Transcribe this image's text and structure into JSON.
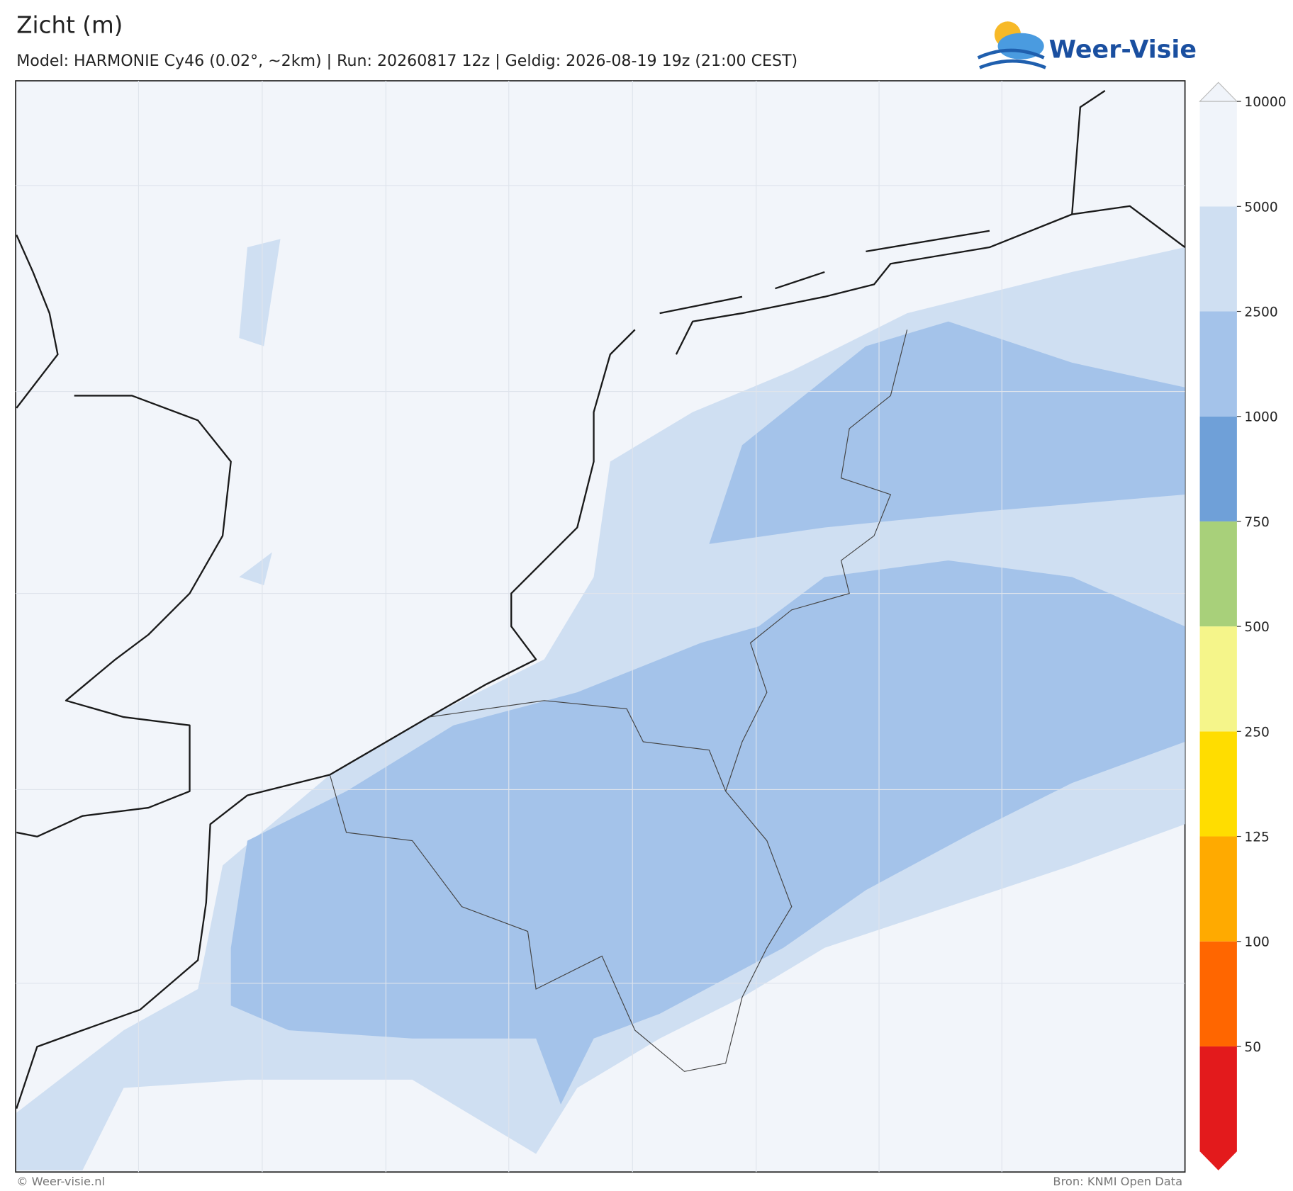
{
  "header": {
    "title": "Zicht (m)",
    "subtitle": "Model: HARMONIE Cy46 (0.02°, ~2km)  |  Run: 20260817 12z  |  Geldig: 2026-08-19 19z (21:00 CEST)",
    "logo": "Weer-Visie"
  },
  "colorbar": {
    "ticks": [
      50,
      100,
      125,
      250,
      500,
      750,
      1000,
      2500,
      5000,
      10000
    ],
    "colors": [
      "#e31a1c",
      "#ff6600",
      "#ffaa00",
      "#ffdd00",
      "#f5f58a",
      "#a8d07a",
      "#6fa0d8",
      "#a4c3ea",
      "#cfdff2",
      "#f0f4fa",
      "#f0f4fa"
    ]
  },
  "footer": {
    "left": "© Weer-visie.nl",
    "right": "Bron: KNMI Open Data"
  }
}
